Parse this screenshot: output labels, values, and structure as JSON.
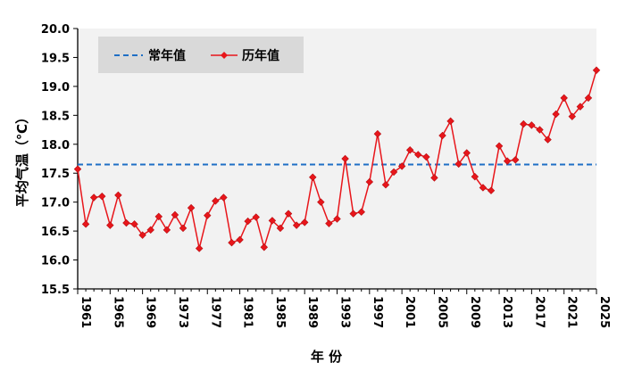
{
  "chart_data": {
    "type": "line",
    "title": "",
    "xlabel": "年 份",
    "ylabel": "平均气温（℃）",
    "xlim": [
      1961,
      2025
    ],
    "ylim": [
      15.5,
      20.0
    ],
    "y_ticks": [
      15.5,
      16.0,
      16.5,
      17.0,
      17.5,
      18.0,
      18.5,
      19.0,
      19.5,
      20.0
    ],
    "x_ticks": [
      1961,
      1965,
      1969,
      1973,
      1977,
      1981,
      1985,
      1989,
      1993,
      1997,
      2001,
      2005,
      2009,
      2013,
      2017,
      2021,
      2025
    ],
    "grid": false,
    "legend_position": "top-left",
    "background": "#f2f2f2",
    "series": [
      {
        "name": "常年值",
        "style": "dashed",
        "color": "#1f6fc5",
        "x": [
          1961,
          2025
        ],
        "y": [
          17.65,
          17.65
        ]
      },
      {
        "name": "历年值",
        "style": "line-diamond",
        "color": "#e8161b",
        "x": [
          1961,
          1962,
          1963,
          1964,
          1965,
          1966,
          1967,
          1968,
          1969,
          1970,
          1971,
          1972,
          1973,
          1974,
          1975,
          1976,
          1977,
          1978,
          1979,
          1980,
          1981,
          1982,
          1983,
          1984,
          1985,
          1986,
          1987,
          1988,
          1989,
          1990,
          1991,
          1992,
          1993,
          1994,
          1995,
          1996,
          1997,
          1998,
          1999,
          2000,
          2001,
          2002,
          2003,
          2004,
          2005,
          2006,
          2007,
          2008,
          2009,
          2010,
          2011,
          2012,
          2013,
          2014,
          2015,
          2016,
          2017,
          2018,
          2019,
          2020,
          2021,
          2022,
          2023,
          2024,
          2025
        ],
        "y": [
          17.57,
          16.62,
          17.08,
          17.1,
          16.6,
          17.12,
          16.64,
          16.62,
          16.43,
          16.52,
          16.75,
          16.52,
          16.78,
          16.55,
          16.9,
          16.2,
          16.77,
          17.02,
          17.08,
          16.3,
          16.35,
          16.67,
          16.74,
          16.22,
          16.68,
          16.55,
          16.8,
          16.6,
          16.65,
          17.43,
          17.0,
          16.63,
          16.71,
          17.75,
          16.8,
          16.83,
          17.35,
          18.18,
          17.3,
          17.52,
          17.62,
          17.9,
          17.82,
          17.78,
          17.42,
          18.15,
          18.4,
          17.66,
          17.85,
          17.44,
          17.25,
          17.2,
          17.97,
          17.71,
          17.73,
          18.35,
          18.33,
          18.25,
          18.08,
          18.52,
          18.8,
          18.48,
          18.65,
          18.8,
          19.28
        ]
      }
    ]
  }
}
